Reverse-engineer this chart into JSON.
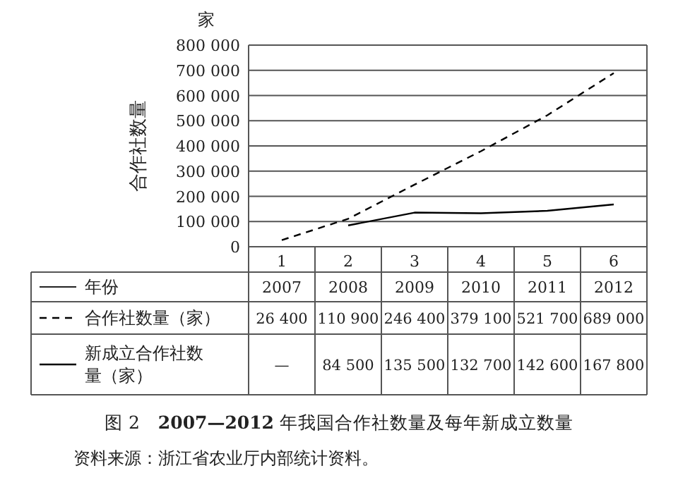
{
  "chart_data": {
    "type": "line",
    "title": "图 2　**2007—2012** 年我国合作社数量及每年新成立数量",
    "ylabel": "合作社数量",
    "annotations": [
      "家",
      "年份",
      "2007",
      "2008",
      "2009",
      "2010",
      "2011",
      "2012",
      "资料来源：浙江省农业厅内部统计资料。"
    ],
    "categories": [
      "1",
      "2",
      "3",
      "4",
      "5",
      "6"
    ],
    "ylim": [
      0,
      800000
    ],
    "yticks": [
      0,
      {
        "value": 100000,
        "label": "100 000"
      },
      {
        "value": 200000,
        "label": "200 000"
      },
      {
        "value": 300000,
        "label": "300 000"
      },
      {
        "value": 400000,
        "label": "400 000"
      },
      {
        "value": 500000,
        "label": "500 000"
      },
      {
        "value": 600000,
        "label": "600 000"
      },
      {
        "value": 700000,
        "label": "700 000"
      },
      {
        "value": 800000,
        "label": "800 000"
      }
    ],
    "grid": "y",
    "legend": "bottom",
    "series": [
      {
        "name": "合作社数量（家）",
        "color": "#000000",
        "line_style": "dashed",
        "values": [
          26400,
          110900,
          246400,
          379100,
          521700,
          689000
        ],
        "value_labels": [
          "26 400",
          "110 900",
          "246 400",
          "379 100",
          "521 700",
          "689 000"
        ]
      },
      {
        "name": "新成立合作社数量（家）",
        "color": "#000000",
        "line_style": "solid",
        "values": [
          null,
          84500,
          135500,
          132700,
          142600,
          167800
        ],
        "value_labels": [
          "—",
          "84 500",
          "135 500",
          "132 700",
          "142 600",
          "167 800"
        ]
      }
    ]
  }
}
